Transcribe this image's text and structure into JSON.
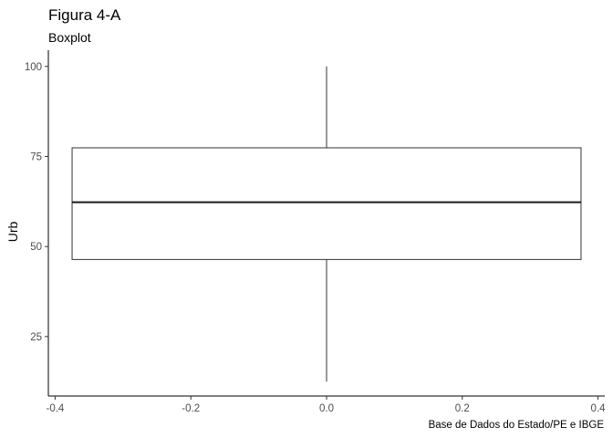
{
  "chart_data": {
    "type": "boxplot",
    "title": "Figura 4-A",
    "subtitle": "Boxplot",
    "caption": "Base de Dados do Estado/PE e IBGE",
    "ylabel": "Urb",
    "xlabel": "",
    "x_ticks": [
      -0.4,
      -0.2,
      0.0,
      0.2,
      0.4
    ],
    "x_tick_labels": [
      "-0.4",
      "-0.2",
      "0.0",
      "0.2",
      "0.4"
    ],
    "y_ticks": [
      25,
      50,
      75,
      100
    ],
    "y_tick_labels": [
      "25",
      "50",
      "75",
      "100"
    ],
    "xlim": [
      -0.41,
      0.41
    ],
    "ylim": [
      8.5,
      104.5
    ],
    "grid": false,
    "box": {
      "x_left": -0.375,
      "x_right": 0.375,
      "x_center": 0.0,
      "whisker_min": 12.5,
      "q1": 46.4,
      "median": 62.3,
      "q3": 77.4,
      "whisker_max": 100
    }
  }
}
